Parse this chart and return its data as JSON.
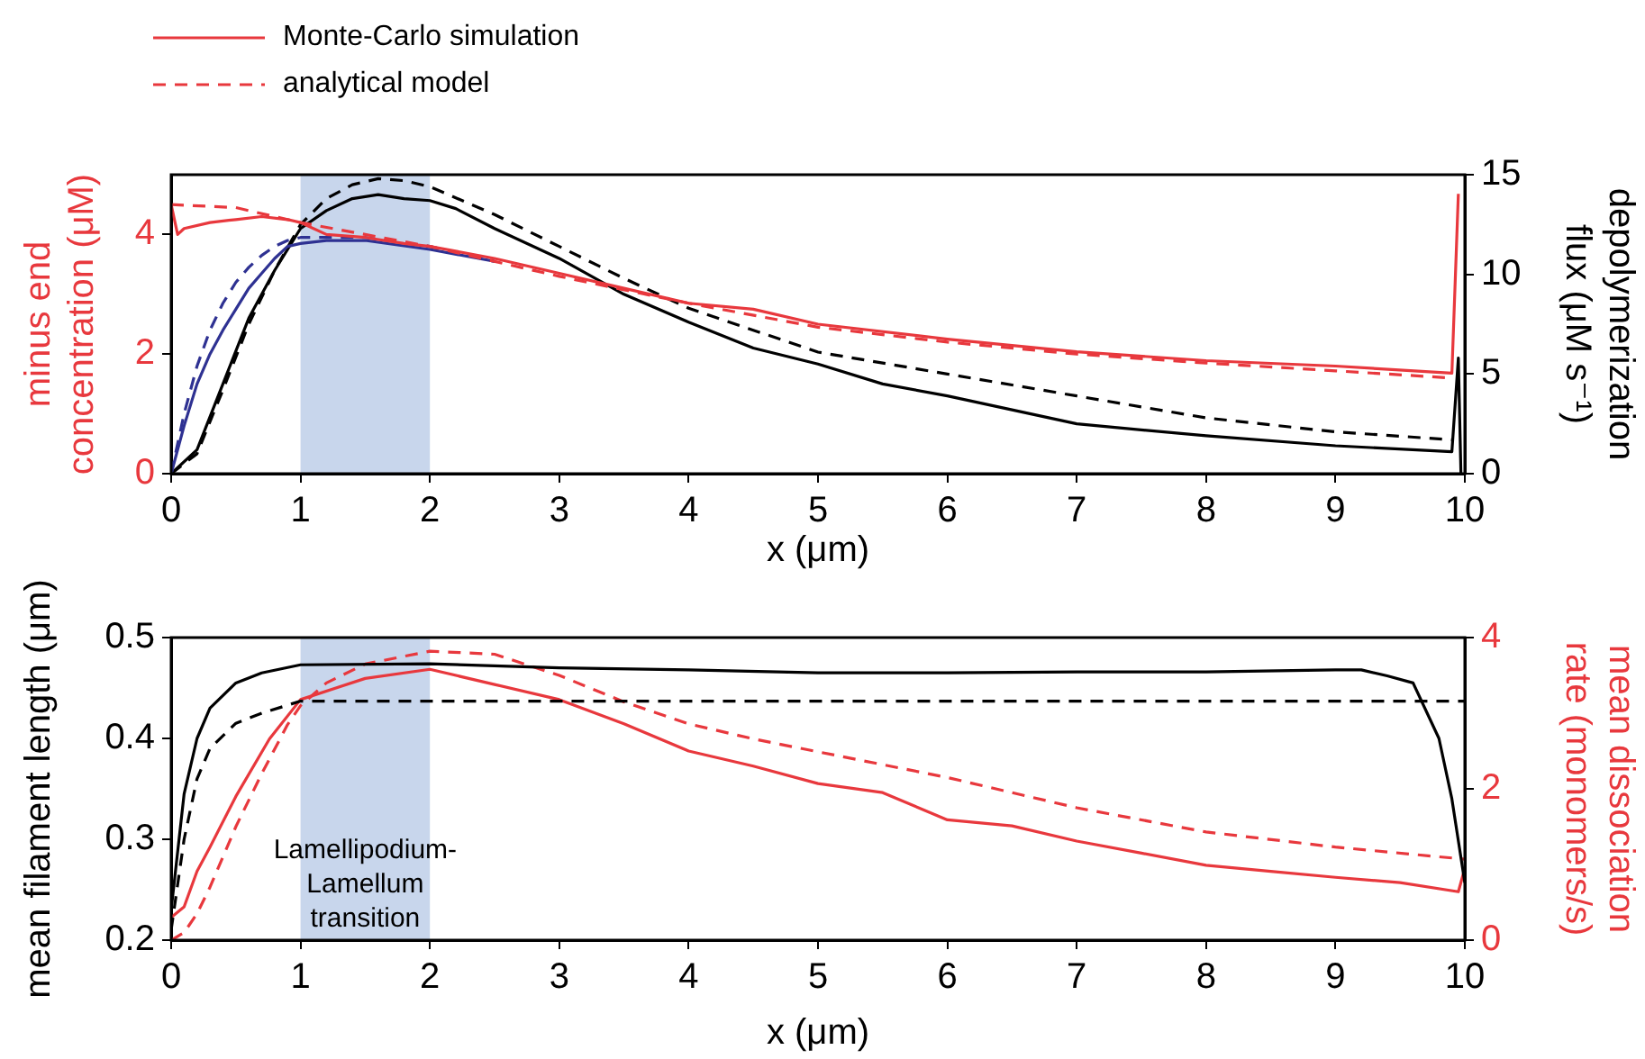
{
  "chart_data": [
    {
      "type": "line",
      "xlabel": "x (μm)",
      "ylabel": "minus end concentration (μM)",
      "y2label": "depolymerization flux (μM s⁻¹)",
      "xlim": [
        0,
        10
      ],
      "xticks": [
        0,
        1,
        2,
        3,
        4,
        5,
        6,
        7,
        8,
        9,
        10
      ],
      "ylim": [
        0,
        5
      ],
      "yticks": [
        0,
        2,
        4
      ],
      "y2lim": [
        0,
        15
      ],
      "y2ticks": [
        0,
        5,
        10,
        15
      ],
      "grid": false,
      "legend": "top left",
      "marker": "none",
      "bands": [
        {
          "axis": "x",
          "from": 1,
          "to": 2,
          "color": "#c8d6ec"
        }
      ],
      "series": [
        {
          "name": "Monte-Carlo simulation",
          "color": "#e8383d",
          "line_style": "solid",
          "axis": "y",
          "x": [
            0,
            0.05,
            0.1,
            0.3,
            0.5,
            0.7,
            0.9,
            1.0,
            1.2,
            1.5,
            1.8,
            2.0,
            2.5,
            3,
            3.5,
            4,
            4.5,
            5,
            6,
            7,
            8,
            9,
            9.9,
            9.95
          ],
          "values": [
            4.5,
            4.0,
            4.1,
            4.2,
            4.25,
            4.3,
            4.25,
            4.2,
            4.0,
            3.95,
            3.85,
            3.8,
            3.6,
            3.35,
            3.1,
            2.85,
            2.75,
            2.5,
            2.25,
            2.04,
            1.89,
            1.8,
            1.68,
            4.68
          ]
        },
        {
          "name": "analytical model",
          "color": "#e8383d",
          "line_style": "dashed",
          "axis": "y",
          "x": [
            0,
            0.5,
            1,
            1.5,
            2,
            3,
            4,
            5,
            6,
            7,
            8,
            9,
            9.9
          ],
          "values": [
            4.5,
            4.45,
            4.2,
            4.0,
            3.8,
            3.3,
            2.85,
            2.45,
            2.2,
            2.0,
            1.85,
            1.72,
            1.6
          ]
        },
        {
          "color": "#2e3192",
          "line_style": "solid",
          "axis": "y",
          "x": [
            0,
            0.1,
            0.2,
            0.3,
            0.4,
            0.5,
            0.6,
            0.7,
            0.8,
            0.9,
            1.0,
            1.2,
            1.5,
            2,
            2.5
          ],
          "values": [
            0,
            0.8,
            1.5,
            2.0,
            2.4,
            2.75,
            3.1,
            3.35,
            3.6,
            3.8,
            3.85,
            3.9,
            3.9,
            3.75,
            3.55
          ]
        },
        {
          "color": "#2e3192",
          "line_style": "dashed",
          "axis": "y",
          "x": [
            0,
            0.1,
            0.2,
            0.3,
            0.4,
            0.5,
            0.6,
            0.7,
            0.8,
            0.9,
            1.0,
            1.5,
            2,
            2.5
          ],
          "values": [
            0,
            1.0,
            1.8,
            2.4,
            2.85,
            3.2,
            3.45,
            3.65,
            3.8,
            3.9,
            3.95,
            3.95,
            3.8,
            3.55
          ]
        },
        {
          "color": "#000000",
          "line_style": "solid",
          "axis": "y2",
          "x": [
            0,
            0.2,
            0.4,
            0.6,
            0.8,
            1.0,
            1.2,
            1.4,
            1.6,
            1.8,
            2.0,
            2.2,
            2.5,
            3,
            3.5,
            4,
            4.5,
            5,
            5.5,
            6,
            7,
            8,
            9,
            9.9,
            9.95,
            9.97
          ],
          "values": [
            0,
            1.2,
            4.5,
            7.8,
            10.2,
            12.3,
            13.2,
            13.8,
            14.0,
            13.8,
            13.7,
            13.3,
            12.3,
            10.8,
            9.0,
            7.6,
            6.3,
            5.5,
            4.5,
            3.9,
            2.5,
            1.9,
            1.4,
            1.1,
            5.8,
            0
          ]
        },
        {
          "color": "#000000",
          "line_style": "dashed",
          "axis": "y2",
          "x": [
            0,
            0.2,
            0.4,
            0.6,
            0.8,
            1.0,
            1.2,
            1.4,
            1.6,
            1.8,
            2.0,
            2.5,
            3,
            3.5,
            4,
            5,
            6,
            7,
            8,
            9,
            9.9
          ],
          "values": [
            0,
            1.0,
            4.2,
            7.5,
            10.2,
            12.5,
            13.8,
            14.5,
            14.8,
            14.7,
            14.4,
            13.0,
            11.4,
            9.8,
            8.3,
            6.1,
            5.0,
            3.9,
            2.8,
            2.1,
            1.7
          ]
        }
      ]
    },
    {
      "type": "line",
      "xlabel": "x (μm)",
      "ylabel": "mean filament length (μm)",
      "y2label": "mean dissociation rate (monomers/s)",
      "xlim": [
        0,
        10
      ],
      "xticks": [
        0,
        1,
        2,
        3,
        4,
        5,
        6,
        7,
        8,
        9,
        10
      ],
      "ylim": [
        0.2,
        0.5
      ],
      "yticks": [
        0.2,
        0.3,
        0.4,
        0.5
      ],
      "y2lim": [
        0,
        4
      ],
      "y2ticks": [
        0,
        2,
        4
      ],
      "grid": false,
      "marker": "none",
      "bands": [
        {
          "axis": "x",
          "from": 1,
          "to": 2,
          "color": "#c8d6ec",
          "label": "Lamellipodium-Lamellum transition"
        }
      ],
      "series": [
        {
          "color": "#000000",
          "line_style": "solid",
          "axis": "y",
          "x": [
            0,
            0.1,
            0.2,
            0.3,
            0.5,
            0.7,
            1,
            2,
            3,
            4,
            5,
            6,
            7,
            8,
            9,
            9.2,
            9.4,
            9.6,
            9.8,
            9.9,
            10
          ],
          "values": [
            0.23,
            0.345,
            0.4,
            0.43,
            0.455,
            0.465,
            0.473,
            0.474,
            0.47,
            0.468,
            0.465,
            0.465,
            0.466,
            0.466,
            0.468,
            0.468,
            0.462,
            0.455,
            0.4,
            0.34,
            0.257
          ]
        },
        {
          "color": "#000000",
          "line_style": "dashed",
          "axis": "y",
          "x": [
            0,
            0.1,
            0.2,
            0.3,
            0.5,
            0.7,
            1,
            10
          ],
          "values": [
            0.21,
            0.3,
            0.36,
            0.39,
            0.415,
            0.425,
            0.437,
            0.437
          ]
        },
        {
          "color": "#e8383d",
          "line_style": "solid",
          "axis": "y2",
          "x": [
            0,
            0.1,
            0.2,
            0.3,
            0.5,
            0.76,
            1,
            1.5,
            2,
            2.5,
            3,
            3.5,
            4,
            4.5,
            5,
            5.5,
            6,
            6.5,
            7,
            7.5,
            8,
            8.5,
            9,
            9.5,
            9.95,
            10
          ],
          "values": [
            0.3,
            0.44,
            0.91,
            1.23,
            1.9,
            2.66,
            3.18,
            3.46,
            3.58,
            3.38,
            3.18,
            2.86,
            2.5,
            2.3,
            2.07,
            1.95,
            1.59,
            1.51,
            1.31,
            1.15,
            0.99,
            0.91,
            0.83,
            0.76,
            0.64,
            0.95
          ]
        },
        {
          "color": "#e8383d",
          "line_style": "dashed",
          "axis": "y2",
          "x": [
            0,
            0.1,
            0.2,
            0.3,
            0.4,
            0.5,
            0.7,
            0.9,
            1,
            1.2,
            1.5,
            2,
            2.5,
            3,
            3.5,
            4,
            4.5,
            5,
            6,
            7,
            8,
            9,
            10
          ],
          "values": [
            0,
            0.1,
            0.35,
            0.7,
            1.1,
            1.5,
            2.2,
            2.85,
            3.1,
            3.4,
            3.65,
            3.82,
            3.78,
            3.5,
            3.15,
            2.86,
            2.66,
            2.49,
            2.15,
            1.75,
            1.43,
            1.23,
            1.07
          ]
        }
      ]
    }
  ]
}
